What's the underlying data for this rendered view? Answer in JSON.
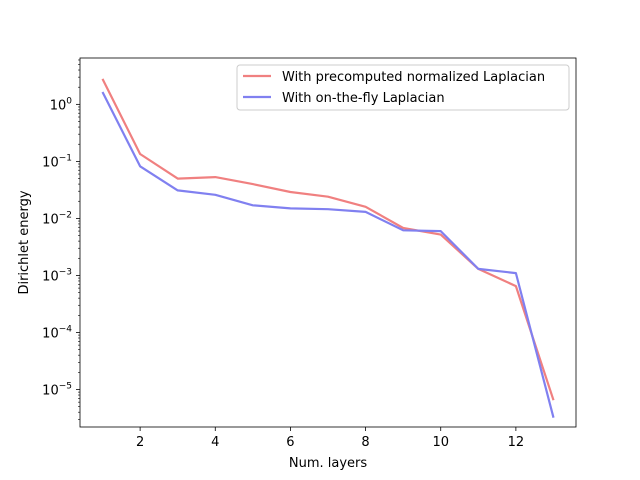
{
  "chart_data": {
    "type": "line",
    "title": "",
    "xlabel": "Num. layers",
    "ylabel": "Dirichlet energy",
    "yscale": "log",
    "xlim": [
      0.4,
      13.6
    ],
    "ylim": [
      2.2e-06,
      6.5
    ],
    "xticks": [
      2,
      4,
      6,
      8,
      10,
      12
    ],
    "xtick_labels": [
      "2",
      "4",
      "6",
      "8",
      "10",
      "12"
    ],
    "yticks": [
      1e-05,
      0.0001,
      0.001,
      0.01,
      0.1,
      1
    ],
    "ytick_labels": [
      {
        "base": "10",
        "exp": "−5"
      },
      {
        "base": "10",
        "exp": "−4"
      },
      {
        "base": "10",
        "exp": "−3"
      },
      {
        "base": "10",
        "exp": "−2"
      },
      {
        "base": "10",
        "exp": "−1"
      },
      {
        "base": "10",
        "exp": "0"
      }
    ],
    "legend_position": "top-right",
    "x": [
      1,
      2,
      3,
      4,
      5,
      6,
      7,
      8,
      9,
      10,
      11,
      12,
      13
    ],
    "series": [
      {
        "name": "With precomputed normalized Laplacian",
        "color": "#f08080",
        "values": [
          2.8,
          0.135,
          0.05,
          0.053,
          0.04,
          0.029,
          0.024,
          0.016,
          0.0068,
          0.0052,
          0.0013,
          0.00065,
          6.5e-06
        ]
      },
      {
        "name": "With on-the-fly Laplacian",
        "color": "#8080f0",
        "values": [
          1.65,
          0.082,
          0.031,
          0.026,
          0.017,
          0.015,
          0.0145,
          0.013,
          0.0062,
          0.006,
          0.0013,
          0.0011,
          3.2e-06
        ]
      }
    ]
  }
}
